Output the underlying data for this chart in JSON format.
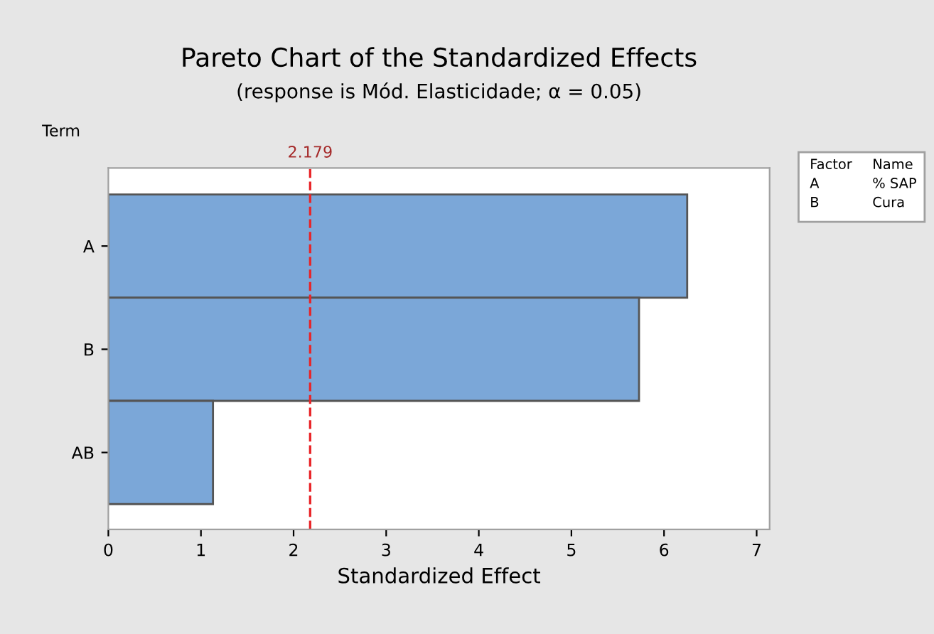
{
  "chart_data": {
    "type": "bar",
    "orientation": "horizontal",
    "title": "Pareto Chart of the Standardized Effects",
    "subtitle": "(response is Mód. Elasticidade; α = 0.05)",
    "xlabel": "Standardized Effect",
    "ylabel": "Term",
    "categories": [
      "A",
      "B",
      "AB"
    ],
    "values": [
      6.25,
      5.73,
      1.13
    ],
    "color": "#7ba7d8",
    "xlim": [
      0,
      7.14
    ],
    "xticks": [
      0,
      1,
      2,
      3,
      4,
      5,
      6,
      7
    ],
    "ref_lines": [
      {
        "axis": "x",
        "value": 2.179,
        "label": "2.179",
        "color": "#e8262a",
        "line_style": "dashed"
      }
    ],
    "annotations": [
      "Factor",
      "Name",
      "A",
      "% SAP",
      "B",
      "Cura"
    ],
    "grid": false,
    "legend": false
  }
}
